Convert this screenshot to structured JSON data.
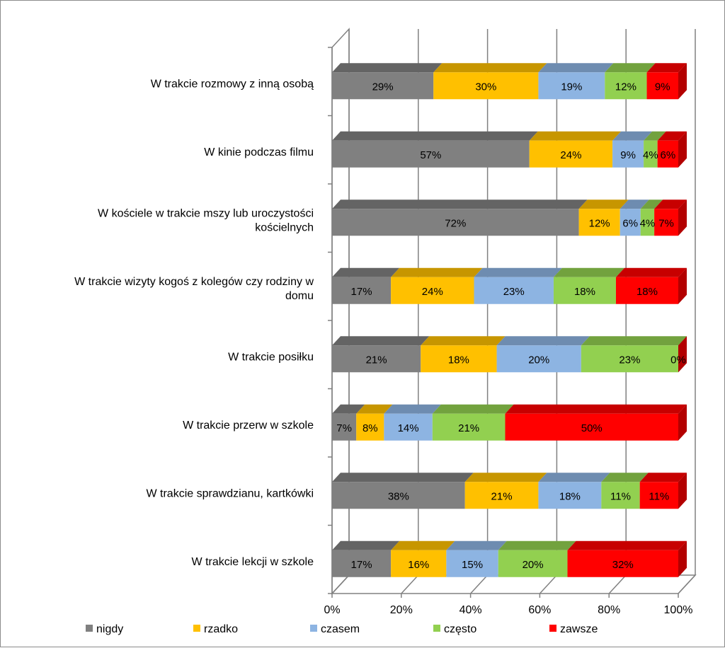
{
  "chart_data": {
    "type": "bar",
    "orientation": "horizontal",
    "stacked": "percent",
    "three_d": true,
    "categories": [
      "W trakcie rozmowy z inną osobą",
      "W kinie podczas filmu",
      "W kościele w trakcie mszy lub uroczystości kościelnych",
      "W trakcie wizyty kogoś z kolegów czy rodziny w domu",
      "W trakcie posiłku",
      "W trakcie przerw w szkole",
      "W trakcie sprawdzianu, kartkówki",
      "W trakcie lekcji w szkole"
    ],
    "category_lines": [
      [
        "W trakcie rozmowy z inną osobą"
      ],
      [
        "W kinie podczas filmu"
      ],
      [
        "W kościele w trakcie mszy lub uroczystości",
        "kościelnych"
      ],
      [
        "W trakcie wizyty kogoś z kolegów czy rodziny w",
        "domu"
      ],
      [
        "W trakcie posiłku"
      ],
      [
        "W trakcie przerw w szkole"
      ],
      [
        "W trakcie sprawdzianu, kartkówki"
      ],
      [
        "W trakcie lekcji w szkole"
      ]
    ],
    "series": [
      {
        "name": "nigdy",
        "color": "#808080",
        "values": [
          29,
          57,
          72,
          17,
          21,
          7,
          38,
          17
        ]
      },
      {
        "name": "rzadko",
        "color": "#ffc000",
        "values": [
          30,
          24,
          12,
          24,
          18,
          8,
          21,
          16
        ]
      },
      {
        "name": "czasem",
        "color": "#8db4e2",
        "values": [
          19,
          9,
          6,
          23,
          20,
          14,
          18,
          15
        ]
      },
      {
        "name": "często",
        "color": "#92d050",
        "values": [
          12,
          4,
          4,
          18,
          23,
          21,
          11,
          20
        ]
      },
      {
        "name": "zawsze",
        "color": "#ff0000",
        "values": [
          9,
          6,
          7,
          18,
          0,
          50,
          11,
          32
        ]
      }
    ],
    "data_labels": [
      [
        "29%",
        "30%",
        "19%",
        "12%",
        "9%"
      ],
      [
        "57%",
        "24%",
        "9%",
        "4%",
        "6%"
      ],
      [
        "72%",
        "12%",
        "6%",
        "4%",
        "7%"
      ],
      [
        "17%",
        "24%",
        "23%",
        "18%",
        "18%"
      ],
      [
        "21%",
        "18%",
        "20%",
        "23%",
        "0%"
      ],
      [
        "7%",
        "8%",
        "14%",
        "21%",
        "50%"
      ],
      [
        "38%",
        "21%",
        "18%",
        "11%",
        "11%"
      ],
      [
        "17%",
        "16%",
        "15%",
        "20%",
        "32%"
      ]
    ],
    "x_ticks": [
      "0%",
      "20%",
      "40%",
      "60%",
      "80%",
      "100%"
    ],
    "xlim": [
      0,
      100
    ],
    "legend_position": "bottom",
    "grid": true
  }
}
